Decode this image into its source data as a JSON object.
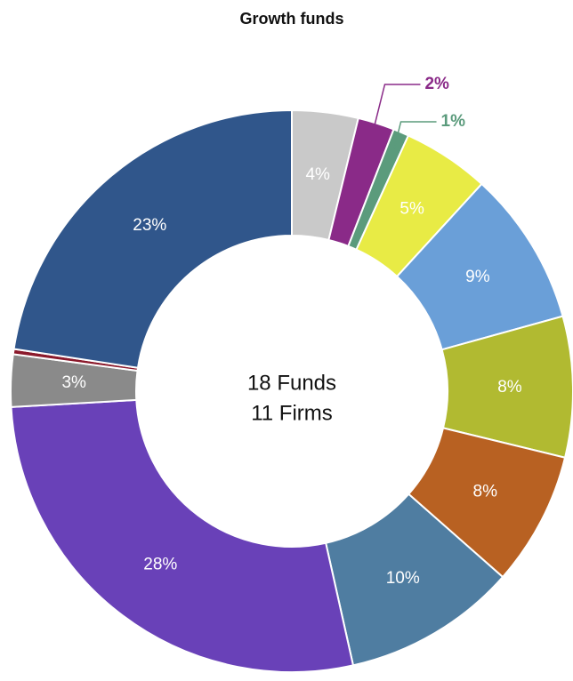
{
  "chart_data": {
    "type": "donut",
    "title": "Growth funds",
    "annotations": [
      "18 Funds",
      "11 Firms"
    ],
    "values": [
      3.8,
      2.1,
      0.9,
      5.0,
      8.9,
      8.1,
      7.7,
      10.0,
      27.6,
      3.0,
      0.3,
      22.6
    ],
    "value_labels": [
      "4%",
      "2%",
      "1%",
      "5%",
      "9%",
      "8%",
      "8%",
      "10%",
      "28%",
      "3%",
      null,
      "23%"
    ],
    "colors": [
      "#c9c9c9",
      "#8a2a88",
      "#5b9b7c",
      "#e8eb45",
      "#6a9fd8",
      "#b1ba31",
      "#b86122",
      "#4f7da1",
      "#6941b8",
      "#8a8a8a",
      "#8b1a2c",
      "#30568b"
    ]
  }
}
